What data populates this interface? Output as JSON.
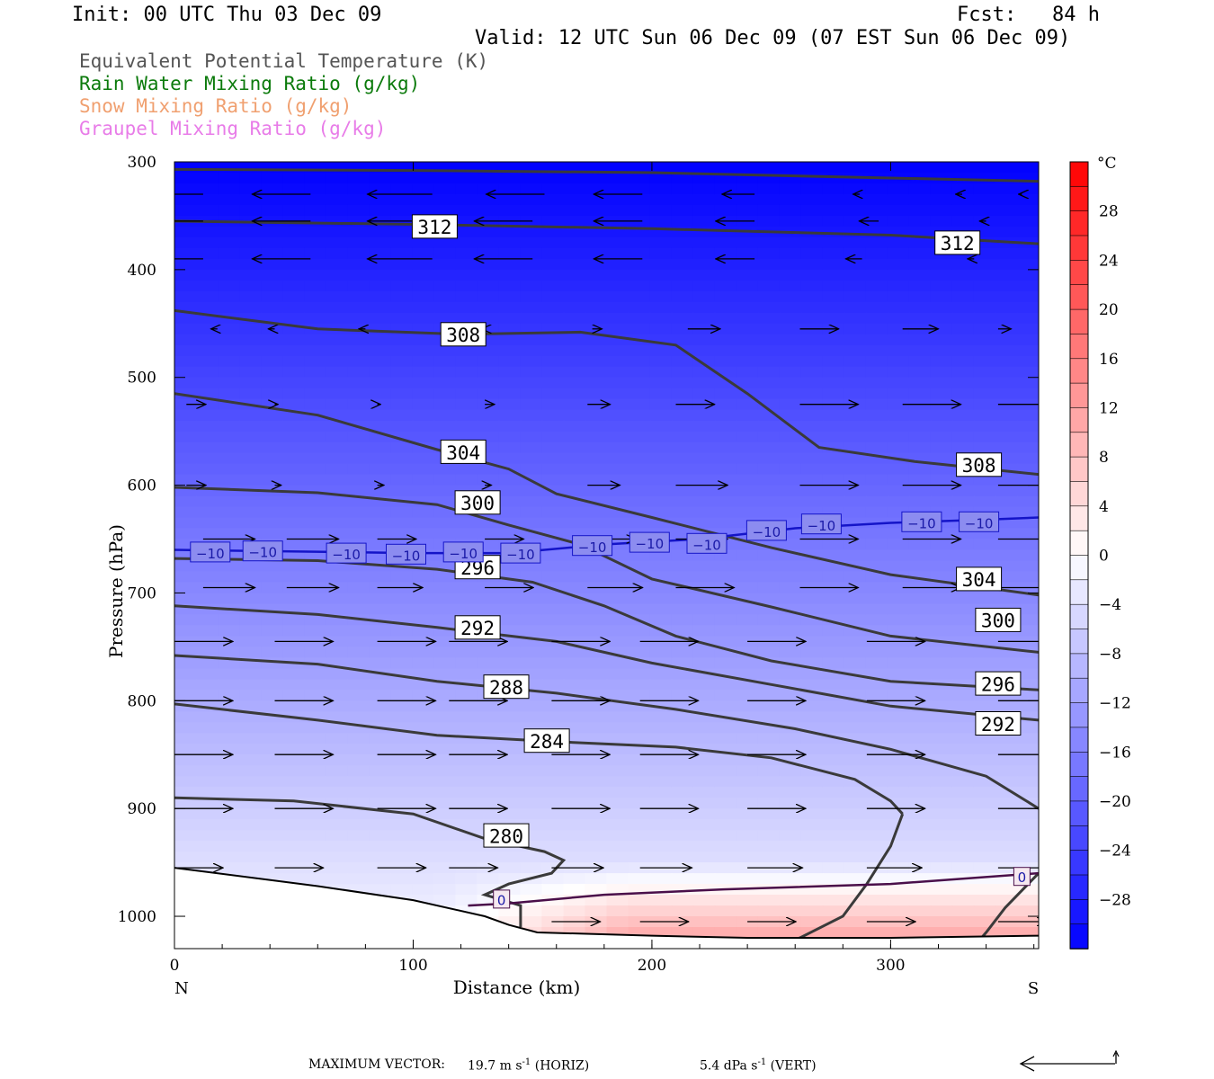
{
  "header": {
    "init": "Init: 00 UTC Thu 03 Dec 09",
    "fcst": "Fcst:   84 h",
    "valid": "Valid: 12 UTC Sun 06 Dec 09 (07 EST Sun 06 Dec 09)"
  },
  "legend": [
    {
      "text": "Equivalent Potential Temperature (K)",
      "color": "#555555"
    },
    {
      "text": "Rain Water Mixing Ratio (g/kg)",
      "color": "#0b7a0b"
    },
    {
      "text": "Snow Mixing Ratio (g/kg)",
      "color": "#f0a070"
    },
    {
      "text": "Graupel Mixing Ratio (g/kg)",
      "color": "#e87ce8"
    }
  ],
  "footer": {
    "max_vector_label": "MAXIMUM VECTOR:",
    "horiz_value": "19.7 m s",
    "horiz_exp": "-1",
    "horiz_tag": "(HORIZ)",
    "vert_value": "5.4 dPa s",
    "vert_exp": "-1",
    "vert_tag": "(VERT)"
  },
  "chart_data": {
    "type": "heatmap",
    "xlabel": "Distance (km)",
    "ylabel": "Pressure (hPa)",
    "x_ticks": [
      0,
      100,
      200,
      300
    ],
    "y_ticks": [
      300,
      400,
      500,
      600,
      700,
      800,
      900,
      1000
    ],
    "xlim": [
      0,
      362
    ],
    "ylim": [
      1030,
      300
    ],
    "x_end_labels": {
      "left": "N",
      "right": "S"
    },
    "colorbar": {
      "unit": "°C",
      "ticks": [
        28,
        24,
        20,
        16,
        12,
        8,
        4,
        0,
        -4,
        -8,
        -12,
        -16,
        -20,
        -24,
        -28
      ],
      "tick_labels": [
        "28",
        "24",
        "20",
        "16",
        "12",
        "8",
        "4",
        "0",
        "−4",
        "−8",
        "−12",
        "−16",
        "−20",
        "−24",
        "−28"
      ],
      "range": [
        -32,
        32
      ],
      "cold_color": "#0000ff",
      "mid_color": "#ffffff",
      "warm_color": "#ff0000"
    },
    "theta_e_contours": [
      {
        "value": "312",
        "points": [
          [
            0,
            355
          ],
          [
            100,
            358
          ],
          [
            200,
            362
          ],
          [
            300,
            368
          ],
          [
            362,
            376
          ]
        ],
        "labels": [
          [
            109,
            360
          ],
          [
            328,
            375
          ]
        ]
      },
      {
        "value": "308",
        "points": [
          [
            0,
            438
          ],
          [
            60,
            455
          ],
          [
            120,
            460
          ],
          [
            170,
            458
          ],
          [
            210,
            470
          ],
          [
            240,
            515
          ],
          [
            270,
            565
          ],
          [
            310,
            578
          ],
          [
            362,
            590
          ]
        ],
        "labels": [
          [
            121,
            460
          ],
          [
            337,
            581
          ]
        ]
      },
      {
        "value": "304",
        "points": [
          [
            0,
            515
          ],
          [
            60,
            535
          ],
          [
            110,
            567
          ],
          [
            140,
            585
          ],
          [
            160,
            608
          ],
          [
            200,
            630
          ],
          [
            250,
            658
          ],
          [
            300,
            683
          ],
          [
            362,
            702
          ]
        ],
        "labels": [
          [
            121,
            569
          ],
          [
            337,
            687
          ]
        ]
      },
      {
        "value": "300",
        "points": [
          [
            0,
            602
          ],
          [
            60,
            607
          ],
          [
            110,
            618
          ],
          [
            140,
            637
          ],
          [
            170,
            655
          ],
          [
            200,
            687
          ],
          [
            250,
            713
          ],
          [
            300,
            740
          ],
          [
            362,
            755
          ]
        ],
        "labels": [
          [
            127,
            616
          ],
          [
            345,
            725
          ]
        ]
      },
      {
        "value": "296",
        "points": [
          [
            0,
            668
          ],
          [
            60,
            670
          ],
          [
            110,
            678
          ],
          [
            150,
            690
          ],
          [
            180,
            712
          ],
          [
            210,
            740
          ],
          [
            250,
            763
          ],
          [
            300,
            782
          ],
          [
            362,
            790
          ]
        ],
        "labels": [
          [
            127,
            676
          ],
          [
            345,
            784
          ]
        ]
      },
      {
        "value": "292",
        "points": [
          [
            0,
            712
          ],
          [
            60,
            720
          ],
          [
            110,
            732
          ],
          [
            160,
            745
          ],
          [
            200,
            765
          ],
          [
            250,
            785
          ],
          [
            300,
            805
          ],
          [
            362,
            818
          ]
        ],
        "labels": [
          [
            127,
            732
          ],
          [
            345,
            821
          ]
        ]
      },
      {
        "value": "288",
        "points": [
          [
            0,
            758
          ],
          [
            60,
            766
          ],
          [
            110,
            782
          ],
          [
            160,
            793
          ],
          [
            210,
            808
          ],
          [
            260,
            826
          ],
          [
            300,
            845
          ],
          [
            340,
            870
          ],
          [
            362,
            900
          ]
        ],
        "labels": [
          [
            139,
            787
          ],
          [
            -1,
            0
          ]
        ]
      },
      {
        "value": "284",
        "points": [
          [
            0,
            803
          ],
          [
            60,
            818
          ],
          [
            110,
            832
          ],
          [
            160,
            838
          ],
          [
            210,
            843
          ],
          [
            250,
            853
          ],
          [
            285,
            873
          ],
          [
            300,
            893
          ],
          [
            305,
            905
          ]
        ],
        "labels": [
          [
            156,
            837
          ],
          [
            -1,
            0
          ]
        ]
      },
      {
        "value": "280",
        "points": [
          [
            0,
            890
          ],
          [
            50,
            893
          ],
          [
            100,
            905
          ],
          [
            130,
            928
          ],
          [
            155,
            940
          ],
          [
            163,
            948
          ],
          [
            158,
            960
          ],
          [
            140,
            970
          ],
          [
            130,
            980
          ],
          [
            145,
            990
          ],
          [
            145,
            1010
          ]
        ],
        "labels": [
          [
            139,
            925
          ],
          [
            -1,
            0
          ]
        ]
      }
    ],
    "extra_contours": [
      {
        "points": [
          [
            305,
            905
          ],
          [
            300,
            935
          ],
          [
            290,
            970
          ],
          [
            280,
            1000
          ],
          [
            262,
            1020
          ],
          [
            255,
            1028
          ]
        ]
      },
      {
        "points": [
          [
            362,
            960
          ],
          [
            348,
            992
          ],
          [
            340,
            1015
          ],
          [
            335,
            1028
          ]
        ]
      }
    ],
    "isotherm_minus10": {
      "label": "−10",
      "points": [
        [
          0,
          660
        ],
        [
          100,
          663
        ],
        [
          140,
          663
        ],
        [
          180,
          655
        ],
        [
          220,
          650
        ],
        [
          260,
          640
        ],
        [
          300,
          635
        ],
        [
          340,
          632
        ],
        [
          362,
          630
        ]
      ],
      "labels": [
        [
          15,
          662
        ],
        [
          37,
          661
        ],
        [
          72,
          663
        ],
        [
          97,
          664
        ],
        [
          121,
          662
        ],
        [
          145,
          663
        ],
        [
          175,
          656
        ],
        [
          199,
          653
        ],
        [
          223,
          654
        ],
        [
          248,
          642
        ],
        [
          271,
          636
        ],
        [
          313,
          634
        ],
        [
          337,
          634
        ]
      ]
    },
    "isotherm_zero": {
      "label": "0",
      "points": [
        [
          123,
          990
        ],
        [
          140,
          988
        ],
        [
          180,
          980
        ],
        [
          230,
          975
        ],
        [
          300,
          970
        ],
        [
          362,
          960
        ]
      ],
      "labels": [
        [
          137,
          984
        ],
        [
          355,
          963
        ]
      ]
    },
    "terrain": [
      [
        0,
        955
      ],
      [
        60,
        972
      ],
      [
        100,
        985
      ],
      [
        130,
        1000
      ],
      [
        140,
        1008
      ],
      [
        152,
        1015
      ],
      [
        200,
        1018
      ],
      [
        240,
        1020
      ],
      [
        300,
        1020
      ],
      [
        362,
        1018
      ]
    ],
    "wind_arrows": [
      {
        "p": 330,
        "x": [
          12,
          57,
          108,
          155,
          196,
          243,
          287,
          330,
          355
        ],
        "dx": [
          -18,
          -18,
          -20,
          -18,
          -15,
          -10,
          -2,
          -2,
          -1
        ],
        "dy": [
          0,
          0,
          0,
          0,
          0,
          0,
          0,
          0,
          0
        ]
      },
      {
        "p": 355,
        "x": [
          12,
          57,
          108,
          150,
          196,
          243,
          295,
          340
        ],
        "dx": [
          -18,
          -18,
          -20,
          -18,
          -15,
          -12,
          -6,
          -2
        ],
        "dy": [
          0,
          0,
          0,
          0,
          0,
          0,
          0,
          0
        ]
      },
      {
        "p": 390,
        "x": [
          12,
          57,
          108,
          150,
          196,
          243,
          288,
          335
        ],
        "dx": [
          -18,
          -18,
          -20,
          -18,
          -15,
          -12,
          -5,
          -2
        ],
        "dy": [
          0,
          0,
          0,
          0,
          0,
          0,
          0,
          0
        ]
      },
      {
        "p": 455,
        "x": [
          18,
          42,
          80,
          130,
          175,
          215,
          262,
          305,
          345
        ],
        "dx": [
          -2,
          -2,
          -2,
          -1,
          3,
          10,
          12,
          11,
          4
        ],
        "dy": [
          0,
          0,
          0,
          0,
          0,
          0,
          0,
          0,
          0
        ]
      },
      {
        "p": 525,
        "x": [
          5,
          42,
          85,
          130,
          173,
          210,
          262,
          305,
          345
        ],
        "dx": [
          6,
          1,
          1,
          3,
          7,
          12,
          18,
          18,
          18
        ],
        "dy": [
          0,
          0,
          0,
          0,
          0,
          0,
          0,
          0,
          0
        ]
      },
      {
        "p": 600,
        "x": [
          5,
          42,
          85,
          130,
          173,
          210,
          262,
          305,
          345
        ],
        "dx": [
          6,
          2,
          2,
          2,
          10,
          16,
          18,
          18,
          18
        ],
        "dy": [
          0,
          0,
          0,
          0,
          0,
          0,
          0,
          0,
          0
        ]
      },
      {
        "p": 650,
        "x": [
          12,
          47,
          85,
          130,
          173,
          210,
          262,
          305,
          345
        ],
        "dx": [
          16,
          16,
          12,
          12,
          15,
          16,
          18,
          18,
          18
        ],
        "dy": [
          0,
          0,
          0,
          0,
          0,
          0,
          0,
          0,
          0
        ]
      },
      {
        "p": 695,
        "x": [
          12,
          47,
          85,
          130,
          173,
          210,
          262,
          305,
          345
        ],
        "dx": [
          16,
          16,
          14,
          15,
          17,
          18,
          18,
          18,
          18
        ],
        "dy": [
          0,
          0,
          0,
          0,
          0,
          0,
          0,
          0,
          0
        ]
      },
      {
        "p": 745,
        "x": [
          0,
          42,
          85,
          115,
          158,
          195,
          240,
          290,
          345
        ],
        "dx": [
          18,
          18,
          18,
          18,
          18,
          18,
          18,
          18,
          18
        ],
        "dy": [
          0,
          0,
          0,
          0,
          0,
          0,
          0,
          0,
          0
        ]
      },
      {
        "p": 800,
        "x": [
          0,
          42,
          85,
          115,
          158,
          195,
          240,
          290,
          345
        ],
        "dx": [
          18,
          18,
          18,
          18,
          18,
          18,
          18,
          18,
          18
        ],
        "dy": [
          0,
          0,
          0,
          0,
          0,
          0,
          0,
          0,
          0
        ]
      },
      {
        "p": 850,
        "x": [
          0,
          42,
          85,
          115,
          158,
          195,
          240,
          290,
          345
        ],
        "dx": [
          18,
          18,
          18,
          18,
          18,
          18,
          18,
          18,
          18
        ],
        "dy": [
          0,
          0,
          0,
          0,
          0,
          0,
          0,
          0,
          0
        ]
      },
      {
        "p": 900,
        "x": [
          0,
          42,
          85,
          115,
          158,
          195,
          240,
          290,
          345
        ],
        "dx": [
          18,
          18,
          18,
          18,
          18,
          18,
          18,
          18,
          18
        ],
        "dy": [
          0,
          0,
          0,
          0,
          0,
          0,
          0,
          0,
          0
        ]
      },
      {
        "p": 955,
        "x": [
          0,
          42,
          85,
          115,
          158,
          195,
          240,
          290,
          345
        ],
        "dx": [
          15,
          15,
          15,
          15,
          16,
          16,
          17,
          17,
          17
        ],
        "dy": [
          0,
          0,
          0,
          0,
          0,
          0,
          0,
          0,
          0
        ]
      },
      {
        "p": 1005,
        "x": [
          158,
          195,
          240,
          290,
          345
        ],
        "dx": [
          15,
          15,
          15,
          15,
          15
        ],
        "dy": [
          0,
          0,
          0,
          0,
          0
        ]
      }
    ]
  }
}
